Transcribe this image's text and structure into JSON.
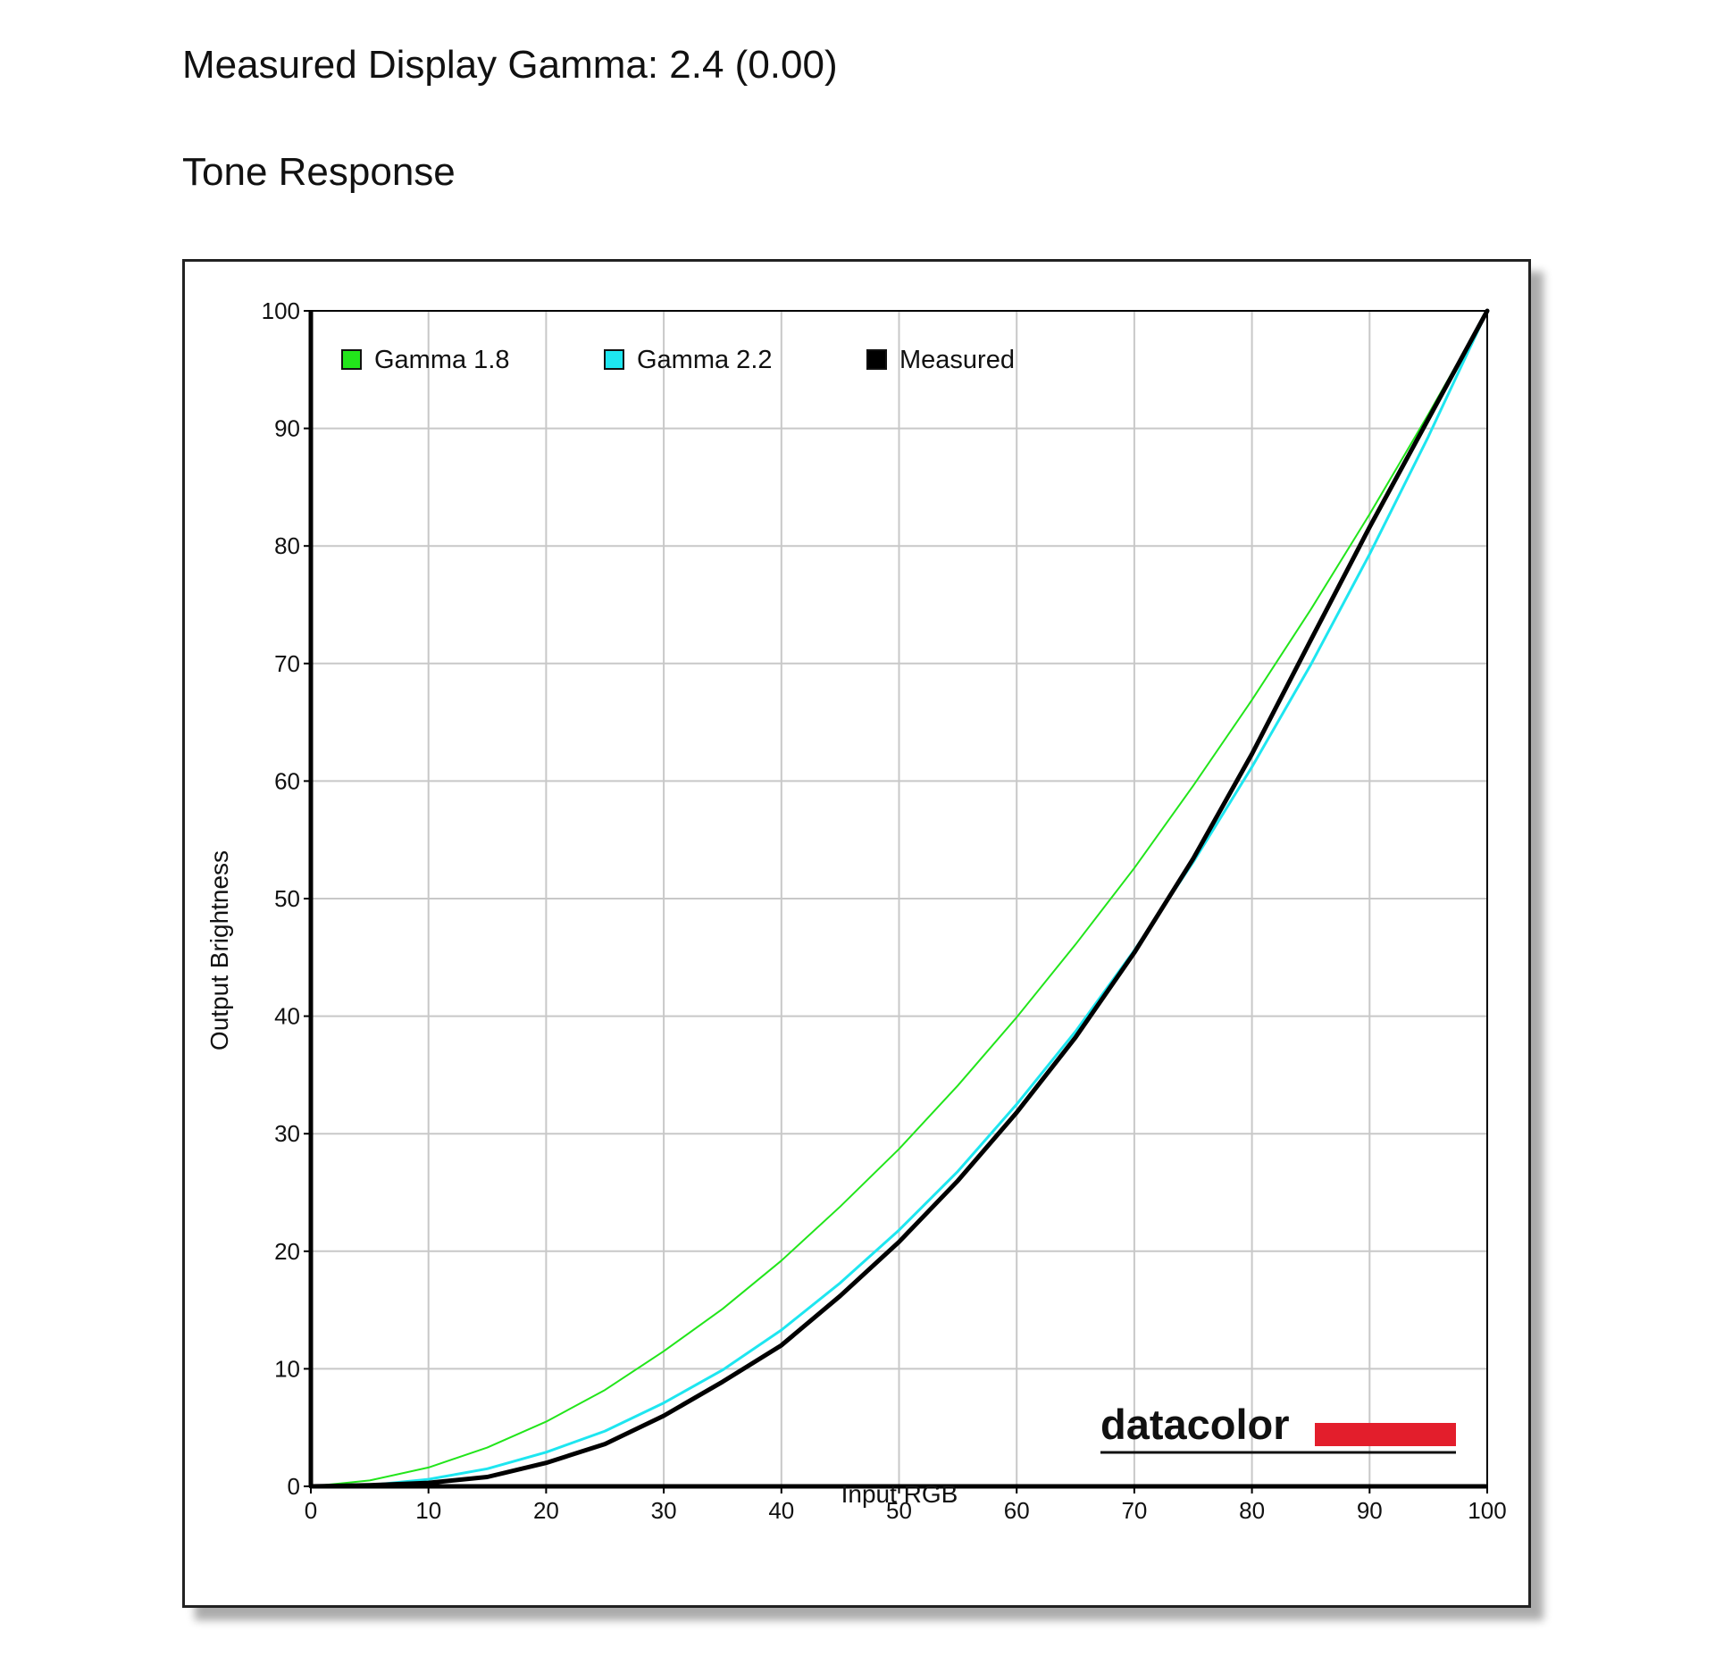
{
  "header": {
    "measured_gamma": "Measured Display Gamma: 2.4 (0.00)",
    "section_title": "Tone Response"
  },
  "logo": {
    "text": "datacolor",
    "accent_color": "#e31e2c"
  },
  "colors": {
    "gamma18": "#22e51b",
    "gamma22": "#1ee6f0",
    "measured": "#000000",
    "grid": "#c8c8c8"
  },
  "chart_data": {
    "type": "line",
    "title": "",
    "xlabel": "Input RGB",
    "ylabel": "Output Brightness",
    "xlim": [
      0,
      100
    ],
    "ylim": [
      0,
      100
    ],
    "xticks": [
      0,
      10,
      20,
      30,
      40,
      50,
      60,
      70,
      80,
      90,
      100
    ],
    "yticks": [
      0,
      10,
      20,
      30,
      40,
      50,
      60,
      70,
      80,
      90,
      100
    ],
    "grid": true,
    "legend_position": "top-left",
    "series": [
      {
        "name": "Gamma 1.8",
        "color": "#22e51b",
        "x": [
          0,
          5,
          10,
          15,
          20,
          25,
          30,
          35,
          40,
          45,
          50,
          55,
          60,
          65,
          70,
          75,
          80,
          85,
          90,
          95,
          100
        ],
        "y": [
          0,
          0.5,
          1.6,
          3.3,
          5.5,
          8.2,
          11.5,
          15.1,
          19.2,
          23.8,
          28.7,
          34.1,
          39.9,
          46.1,
          52.6,
          59.6,
          66.9,
          74.6,
          82.7,
          91.2,
          100
        ]
      },
      {
        "name": "Gamma 2.2",
        "color": "#1ee6f0",
        "x": [
          0,
          5,
          10,
          15,
          20,
          25,
          30,
          35,
          40,
          45,
          50,
          55,
          60,
          65,
          70,
          75,
          80,
          85,
          90,
          95,
          100
        ],
        "y": [
          0,
          0.1,
          0.6,
          1.5,
          2.9,
          4.7,
          7.1,
          9.9,
          13.3,
          17.3,
          21.8,
          26.8,
          32.5,
          38.7,
          45.6,
          53.1,
          61.2,
          69.9,
          79.3,
          89.3,
          100
        ]
      },
      {
        "name": "Measured",
        "color": "#000000",
        "x": [
          0,
          5,
          10,
          15,
          20,
          25,
          30,
          35,
          40,
          45,
          50,
          55,
          60,
          65,
          70,
          75,
          80,
          85,
          90,
          95,
          100
        ],
        "y": [
          0,
          0.1,
          0.3,
          0.8,
          2.0,
          3.6,
          6.0,
          8.9,
          12.0,
          16.2,
          20.8,
          26.0,
          31.8,
          38.2,
          45.4,
          53.4,
          62.3,
          72.0,
          81.6,
          90.8,
          100
        ]
      }
    ]
  }
}
